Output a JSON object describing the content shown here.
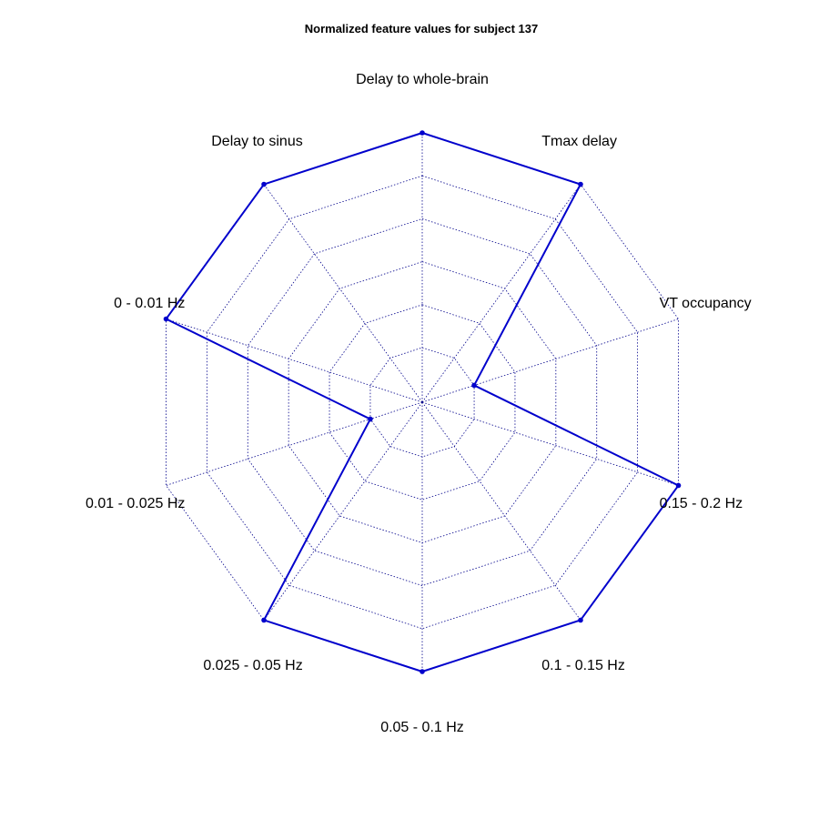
{
  "chart_data": {
    "type": "radar",
    "title": "Normalized feature values for subject 137",
    "axes": [
      "Delay to whole-brain",
      "Tmax delay",
      "VT occupancy",
      "0.15 - 0.2 Hz",
      "0.1 - 0.15 Hz",
      "0.05 - 0.1 Hz",
      "0.025 - 0.05 Hz",
      "0.01 - 0.025 Hz",
      "0 - 0.01 Hz",
      "Delay to sinus"
    ],
    "series": [
      {
        "values": [
          1.0,
          1.0,
          0.0,
          1.0,
          1.0,
          1.0,
          1.0,
          0.0,
          1.0,
          1.0
        ]
      }
    ],
    "grid_levels": 6,
    "grid": true,
    "range": [
      0,
      1
    ],
    "colors": {
      "series": "#0000cc",
      "grid": "#00008b"
    }
  }
}
